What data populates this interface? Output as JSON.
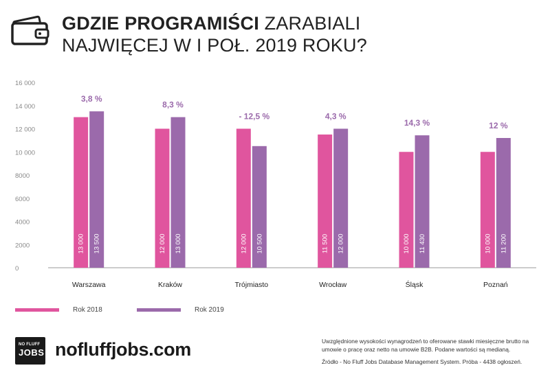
{
  "header": {
    "title_bold": "GDZIE PROGRAMIŚCI",
    "title_regular": " ZARABIALI",
    "title_line2": "NAJWIĘCEJ W I POŁ. 2019 ROKU?"
  },
  "icons": {
    "header_icon": "wallet-icon"
  },
  "colors": {
    "series_2018": "#e0559e",
    "series_2019": "#9b6aab",
    "change_label": "#9b6aab",
    "axis": "#999999",
    "tick_text": "#888888"
  },
  "chart_data": {
    "type": "bar",
    "title": "GDZIE PROGRAMIŚCI ZARABIALI NAJWIĘCEJ W I POŁ. 2019 ROKU?",
    "categories": [
      "Warszawa",
      "Kraków",
      "Trójmiasto",
      "Wrocław",
      "Śląsk",
      "Poznań"
    ],
    "series": [
      {
        "name": "Rok 2018",
        "values": [
          13000,
          12000,
          12000,
          11500,
          10000,
          10000
        ],
        "labels": [
          "13 000",
          "12 000",
          "12 000",
          "11 500",
          "10 000",
          "10 000"
        ]
      },
      {
        "name": "Rok 2019",
        "values": [
          13500,
          13000,
          10500,
          12000,
          11430,
          11200
        ],
        "labels": [
          "13 500",
          "13 000",
          "10 500",
          "12 000",
          "11 430",
          "11 200"
        ]
      }
    ],
    "change_labels": [
      "3,8 %",
      "8,3 %",
      "- 12,5 %",
      "4,3 %",
      "14,3 %",
      "12 %"
    ],
    "ylim": [
      0,
      16000
    ],
    "yticks": [
      0,
      2000,
      4000,
      6000,
      8000,
      10000,
      12000,
      14000,
      16000
    ],
    "ytick_labels": [
      "0",
      "2000",
      "4000",
      "6000",
      "8000",
      "10 000",
      "12 000",
      "14 000",
      "16 000"
    ],
    "xlabel": "",
    "ylabel": "",
    "grid": false,
    "legend_position": "bottom-left"
  },
  "legend": {
    "items": [
      {
        "label": "Rok 2018"
      },
      {
        "label": "Rok 2019"
      }
    ]
  },
  "brand": {
    "logo_line1": "NO FLUFF",
    "logo_line2": "JOBS",
    "url": "nofluffjobs.com"
  },
  "footnote": {
    "text": "Uwzględnione wysokości wynagrodzeń to oferowane stawki miesięczne brutto na umowie o pracę oraz netto na umowie B2B. Podane wartości są medianą.",
    "source": "Źródło - No Fluff Jobs Database Management System. Próba - 4438 ogłoszeń."
  }
}
